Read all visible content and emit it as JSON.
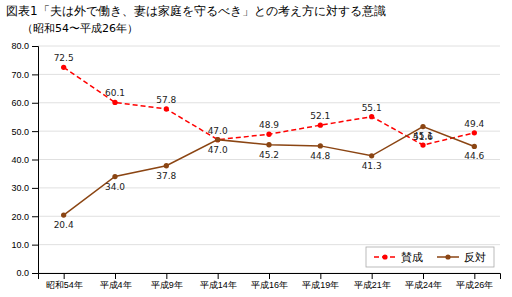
{
  "chart_data": {
    "type": "line",
    "title": "図表1「夫は外で働き、妻は家庭を守るべき」との考え方に対する意識",
    "subtitle": "（昭和54〜平成26年）",
    "categories": [
      "昭和54年",
      "平成4年",
      "平成9年",
      "平成14年",
      "平成16年",
      "平成19年",
      "平成21年",
      "平成24年",
      "平成26年"
    ],
    "series": [
      {
        "name": "賛成",
        "color": "#FF0000",
        "line_style": "dashed",
        "marker": "circle",
        "values": [
          72.5,
          60.1,
          57.8,
          47.0,
          48.9,
          52.1,
          55.1,
          45.1,
          49.4
        ],
        "value_labels": [
          "72.5",
          "60.1",
          "57.8",
          "47.0",
          "48.9",
          "52.1",
          "55.1",
          "45.1",
          "49.4"
        ]
      },
      {
        "name": "反対",
        "color": "#8B4513",
        "line_style": "solid",
        "marker": "circle",
        "values": [
          20.4,
          34.0,
          37.8,
          47.0,
          45.2,
          44.8,
          41.3,
          51.6,
          44.6
        ],
        "value_labels": [
          "20.4",
          "34.0",
          "37.8",
          "47.0",
          "45.2",
          "44.8",
          "41.3",
          "51.6",
          "44.6"
        ]
      }
    ],
    "ylim": [
      0.0,
      80.0
    ],
    "yticks": [
      {
        "value": 0,
        "label": "0.0"
      },
      {
        "value": 10,
        "label": "10.0"
      },
      {
        "value": 20,
        "label": "20.0"
      },
      {
        "value": 30,
        "label": "30.0"
      },
      {
        "value": 40,
        "label": "40.0"
      },
      {
        "value": 50,
        "label": "50.0"
      },
      {
        "value": 60,
        "label": "60.0"
      },
      {
        "value": 70,
        "label": "70.0"
      },
      {
        "value": 80,
        "label": "80.0"
      }
    ],
    "grid": true,
    "legend": "lower right",
    "data_labels": true
  }
}
